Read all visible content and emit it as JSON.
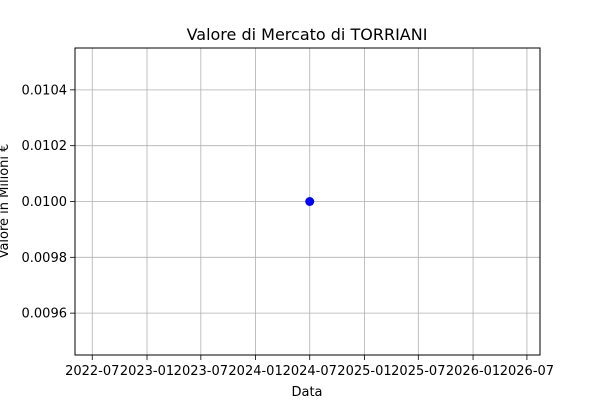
{
  "chart_data": {
    "type": "scatter",
    "title": "Valore di Mercato di TORRIANI",
    "xlabel": "Data",
    "ylabel": "Valore in Milioni €",
    "x_ticks": [
      "2022-07",
      "2023-01",
      "2023-07",
      "2024-01",
      "2024-07",
      "2025-01",
      "2025-07",
      "2026-01",
      "2026-07"
    ],
    "y_ticks": [
      "0.0096",
      "0.0098",
      "0.0100",
      "0.0102",
      "0.0104"
    ],
    "xlim": [
      "2022-05-04",
      "2026-08-14"
    ],
    "ylim": [
      0.00945,
      0.01055
    ],
    "grid": true,
    "series": [
      {
        "marker_color": "#0000ff",
        "points": [
          {
            "x": "2024-07-01",
            "y": 0.01
          }
        ]
      }
    ]
  }
}
